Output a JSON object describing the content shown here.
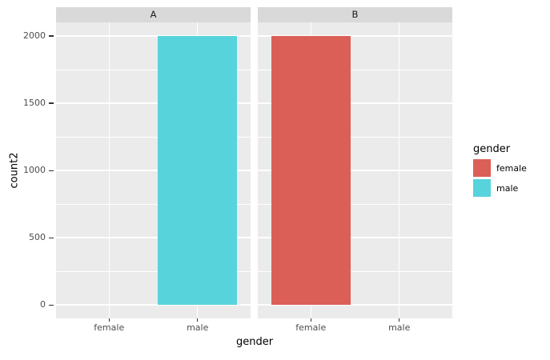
{
  "chart_data": {
    "type": "bar",
    "faceted": true,
    "title": "",
    "xlabel": "gender",
    "ylabel": "count2",
    "categories": [
      "female",
      "male"
    ],
    "facets": [
      {
        "label": "A",
        "values": [
          0,
          2000
        ]
      },
      {
        "label": "B",
        "values": [
          2000,
          0
        ]
      }
    ],
    "series_colors": {
      "female": "#DB5F57",
      "male": "#57D3DB"
    },
    "y_ticks": [
      0,
      500,
      1000,
      1500,
      2000
    ],
    "ylim": [
      0,
      2000
    ],
    "grid": true,
    "legend": {
      "title": "gender",
      "position": "right",
      "entries": [
        {
          "label": "female",
          "color": "#DB5F57"
        },
        {
          "label": "male",
          "color": "#57D3DB"
        }
      ]
    }
  },
  "theme": {
    "panel_bg": "#EBEBEB",
    "strip_bg": "#D9D9D9",
    "grid_color": "#FFFFFF",
    "tick_text_color": "#4D4D4D",
    "tick_mark_color": "#333333",
    "strip_text_color": "#1A1A1A",
    "axis_title_color": "#000000",
    "background": "#FFFFFF"
  }
}
